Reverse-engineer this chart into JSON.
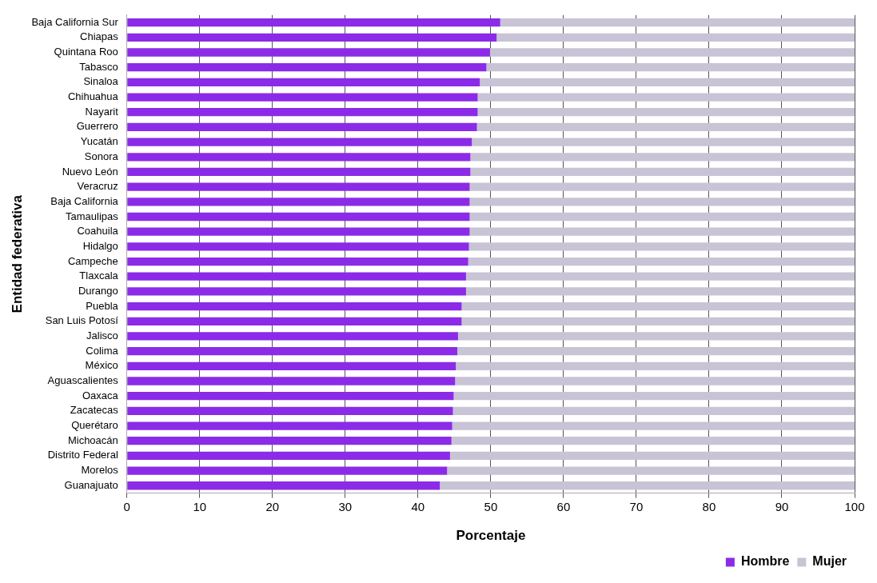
{
  "chart_data": {
    "type": "bar",
    "orientation": "horizontal",
    "stacked": true,
    "xlabel": "Porcentaje",
    "ylabel": "Entidad federativa",
    "categories": [
      "Baja California Sur",
      "Chiapas",
      "Quintana Roo",
      "Tabasco",
      "Sinaloa",
      "Chihuahua",
      "Nayarit",
      "Guerrero",
      "Yucatán",
      "Sonora",
      "Nuevo León",
      "Veracruz",
      "Baja California",
      "Tamaulipas",
      "Coahuila",
      "Hidalgo",
      "Campeche",
      "Tlaxcala",
      "Durango",
      "Puebla",
      "San Luis Potosí",
      "Jalisco",
      "Colima",
      "México",
      "Aguascalientes",
      "Oaxaca",
      "Zacatecas",
      "Querétaro",
      "Michoacán",
      "Distrito Federal",
      "Morelos",
      "Guanajuato"
    ],
    "series": [
      {
        "name": "Hombre",
        "color": "#8b2be8",
        "values": [
          51.3,
          50.8,
          49.9,
          49.4,
          48.5,
          48.2,
          48.2,
          48.1,
          47.4,
          47.2,
          47.2,
          47.1,
          47.1,
          47.1,
          47.1,
          47.0,
          46.9,
          46.6,
          46.6,
          46.0,
          46.0,
          45.5,
          45.4,
          45.2,
          45.1,
          44.9,
          44.8,
          44.7,
          44.6,
          44.4,
          44.0,
          43.0
        ]
      },
      {
        "name": "Mujer",
        "color": "#c9c3d6",
        "values": [
          48.7,
          49.2,
          50.1,
          50.6,
          51.5,
          51.8,
          51.8,
          51.9,
          52.6,
          52.8,
          52.8,
          52.9,
          52.9,
          52.9,
          52.9,
          53.0,
          53.1,
          53.4,
          53.4,
          54.0,
          54.0,
          54.5,
          54.6,
          54.8,
          54.9,
          55.1,
          55.2,
          55.3,
          55.4,
          55.6,
          56.0,
          57.0
        ]
      }
    ],
    "xlim": [
      0,
      100
    ],
    "xticks": [
      0,
      10,
      20,
      30,
      40,
      50,
      60,
      70,
      80,
      90,
      100
    ],
    "grid": "x",
    "legend": "bottom right"
  }
}
